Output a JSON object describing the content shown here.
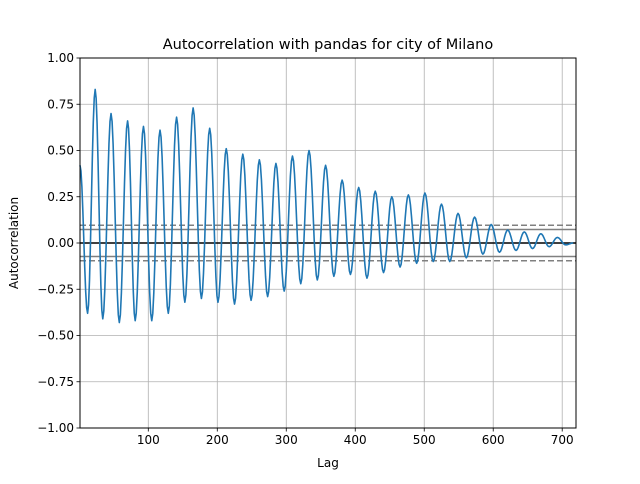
{
  "chart_data": {
    "type": "line",
    "title": "Autocorrelation with pandas for city of Milano",
    "xlabel": "Lag",
    "ylabel": "Autocorrelation",
    "xlim": [
      1,
      720
    ],
    "ylim": [
      -1.0,
      1.0
    ],
    "x_ticks": [
      100,
      200,
      300,
      400,
      500,
      600,
      700
    ],
    "y_ticks": [
      -1.0,
      -0.75,
      -0.5,
      -0.25,
      0.0,
      0.25,
      0.5,
      0.75,
      1.0
    ],
    "x_tick_labels": [
      "100",
      "200",
      "300",
      "400",
      "500",
      "600",
      "700"
    ],
    "y_tick_labels": [
      "−1.00",
      "−0.75",
      "−0.50",
      "−0.25",
      "0.00",
      "0.25",
      "0.50",
      "0.75",
      "1.00"
    ],
    "grid": true,
    "confidence_bands": {
      "solid": [
        0.073,
        -0.073
      ],
      "dashed": [
        0.096,
        -0.096
      ],
      "zero": 0.0
    },
    "series_color": "#1f77b4",
    "series": [
      {
        "x": [
          1,
          12,
          23,
          34,
          46,
          58,
          70,
          81,
          93,
          105,
          117,
          129,
          141,
          153,
          165,
          177,
          189,
          201,
          213,
          225,
          237,
          249,
          261,
          273,
          285,
          297,
          309,
          321,
          333,
          345,
          357,
          369,
          381,
          393,
          405,
          417,
          429,
          441,
          453,
          465,
          477,
          489,
          501,
          513,
          525,
          537,
          549,
          561,
          573,
          585,
          597,
          609,
          621,
          633,
          645,
          657,
          669,
          681,
          693,
          705,
          716
        ],
        "y": [
          0.42,
          -0.38,
          0.83,
          -0.41,
          0.7,
          -0.43,
          0.66,
          -0.42,
          0.63,
          -0.42,
          0.61,
          -0.38,
          0.68,
          -0.32,
          0.73,
          -0.3,
          0.62,
          -0.32,
          0.51,
          -0.33,
          0.48,
          -0.31,
          0.45,
          -0.29,
          0.43,
          -0.26,
          0.47,
          -0.22,
          0.5,
          -0.2,
          0.42,
          -0.18,
          0.34,
          -0.17,
          0.3,
          -0.19,
          0.28,
          -0.16,
          0.25,
          -0.13,
          0.26,
          -0.11,
          0.27,
          -0.1,
          0.21,
          -0.1,
          0.16,
          -0.08,
          0.14,
          -0.06,
          0.1,
          -0.05,
          0.07,
          -0.04,
          0.06,
          -0.03,
          0.05,
          -0.02,
          0.03,
          -0.01,
          0.0
        ]
      }
    ]
  }
}
